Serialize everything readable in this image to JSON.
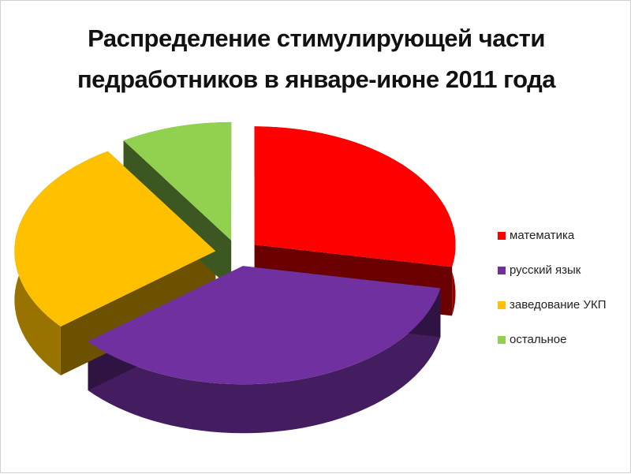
{
  "chart_data": {
    "type": "pie3d",
    "title": "Распределение стимулирующей части педработников в январе-июне 2011 года",
    "categories": [
      "математика",
      "русский язык",
      "заведование УКП",
      "остальное"
    ],
    "values": [
      28,
      36,
      27,
      9
    ],
    "colors": [
      "#ff0000",
      "#7030a0",
      "#ffc000",
      "#92d050"
    ],
    "legend": "right"
  }
}
